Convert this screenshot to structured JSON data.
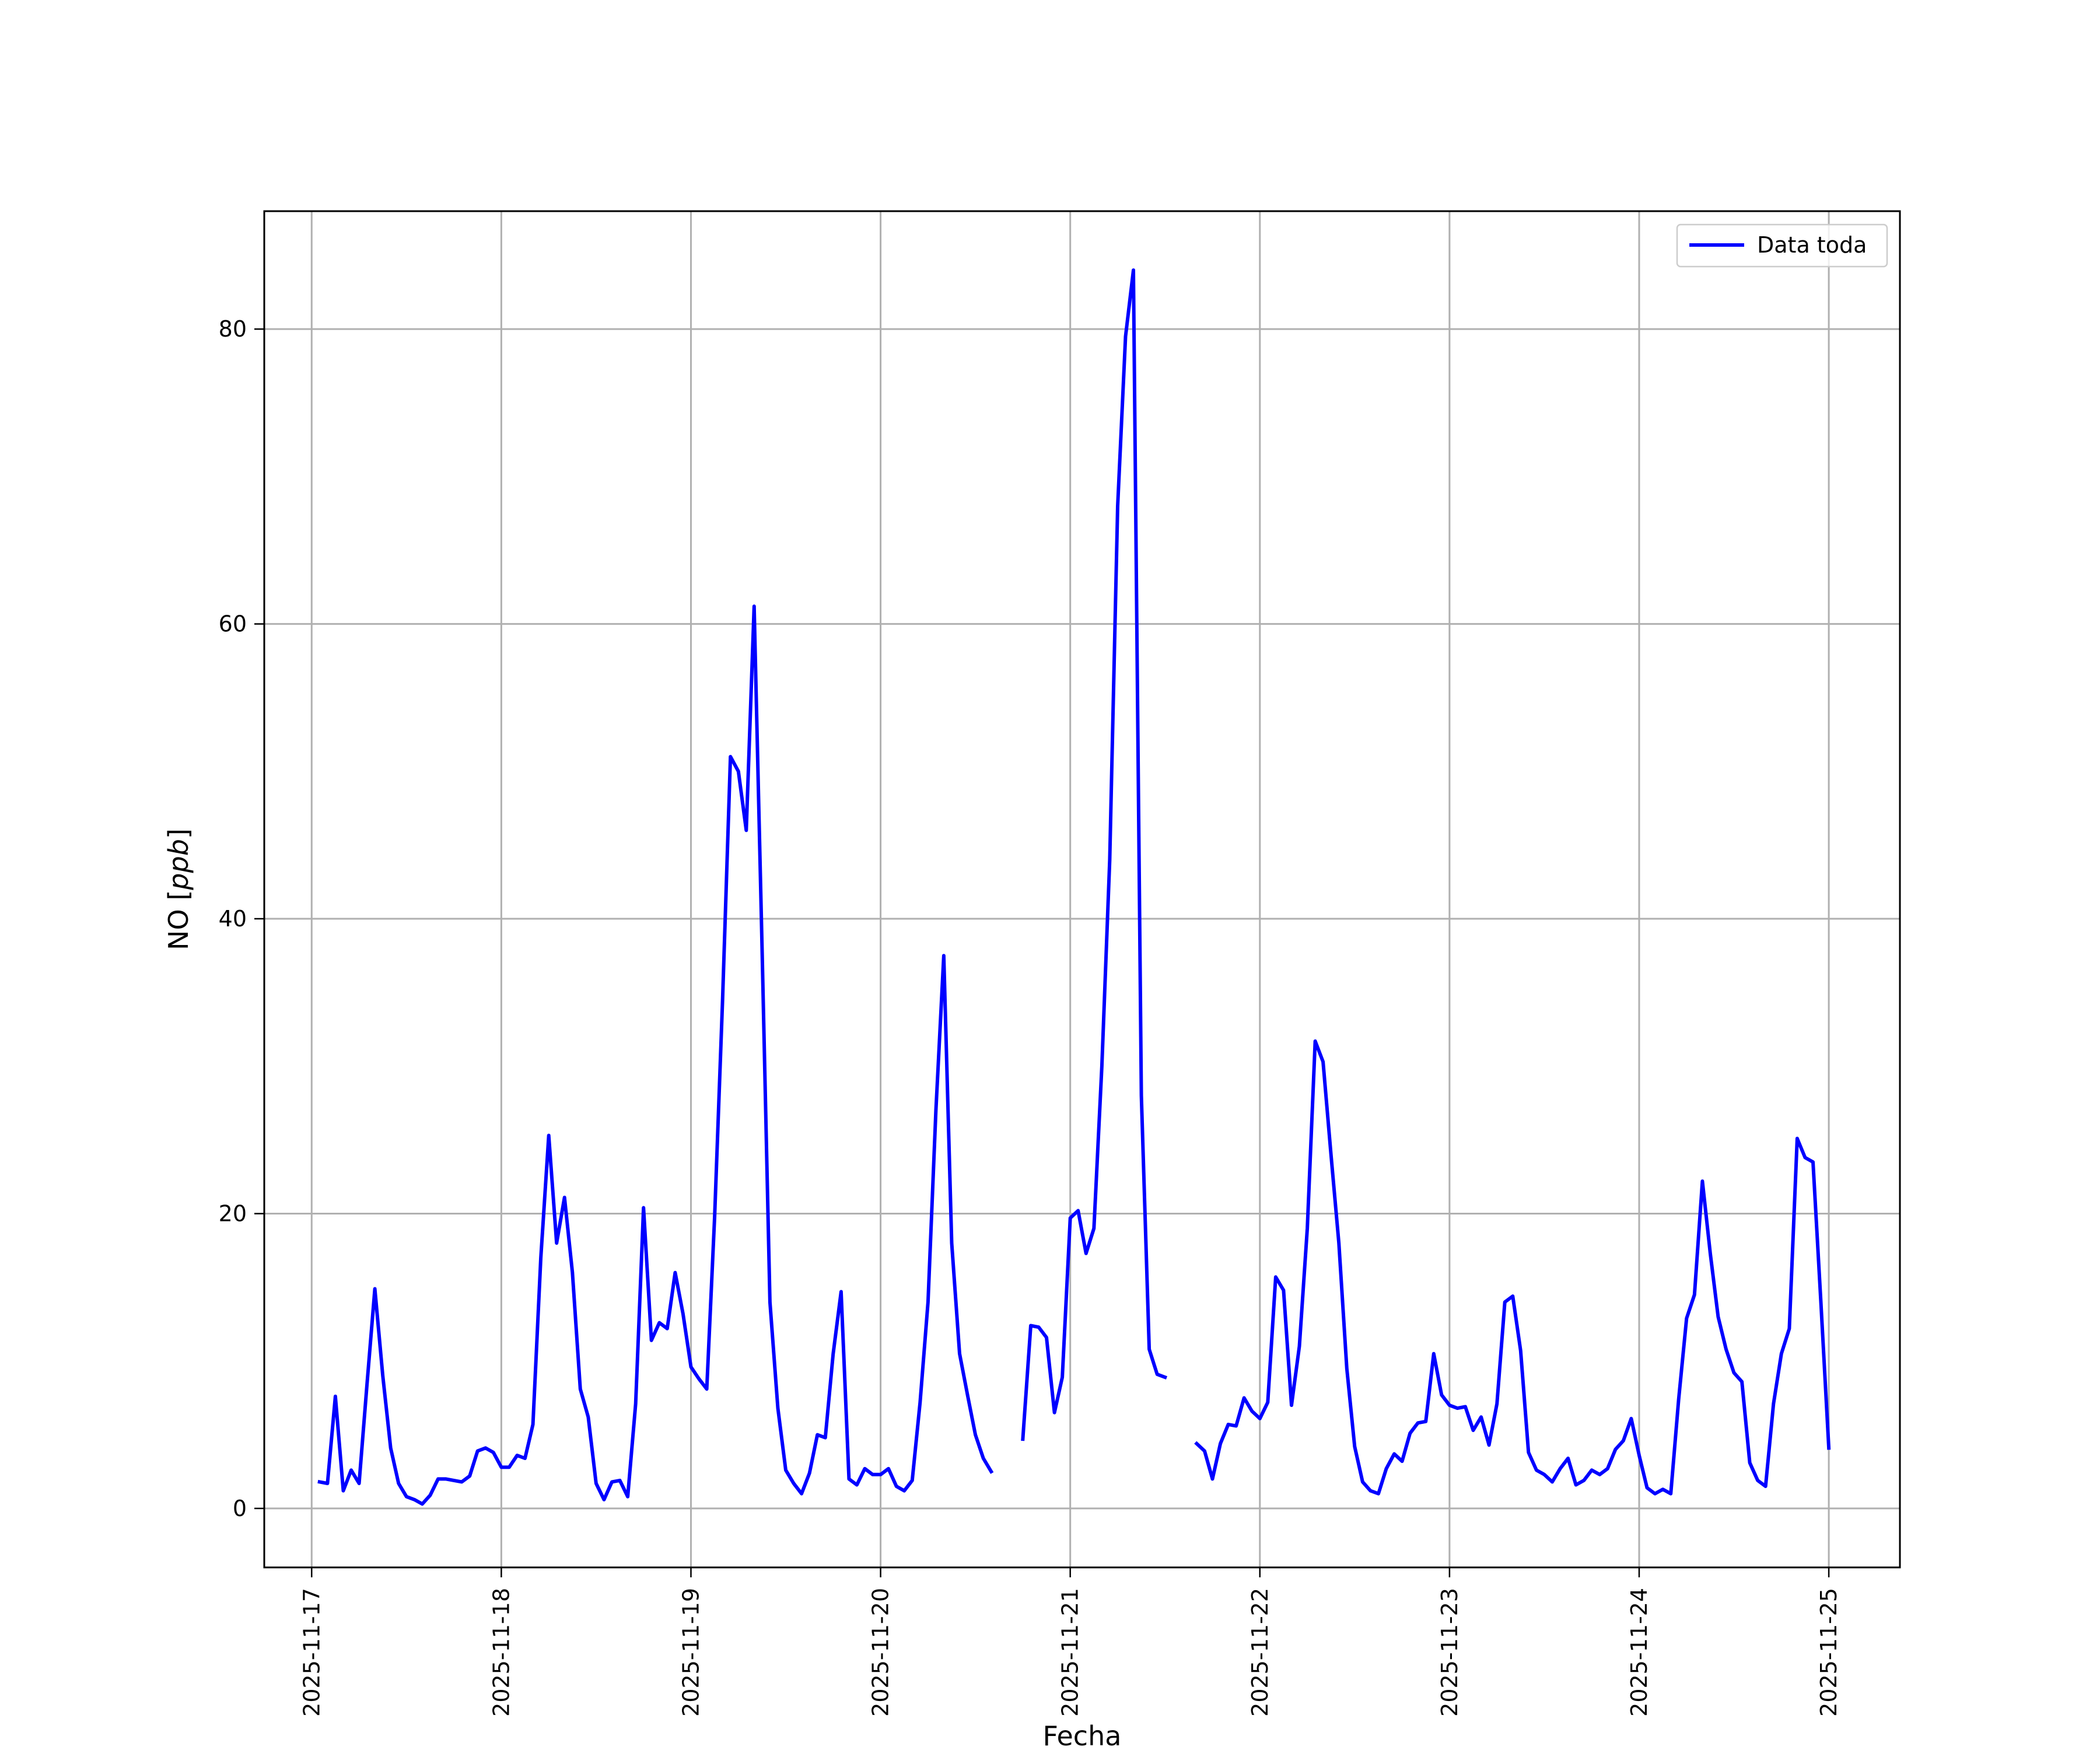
{
  "chart_data": {
    "type": "line",
    "xlabel": "Fecha",
    "ylabel_main": "NO [",
    "ylabel_unit": "ppb",
    "ylabel_close": "]",
    "x_axis": "date",
    "xlim": [
      "2025-11-16T18:00",
      "2025-11-25T09:00"
    ],
    "ylim": [
      -4,
      88
    ],
    "grid": true,
    "legend_position": "top-right",
    "x_ticks": [
      "2025-11-17",
      "2025-11-18",
      "2025-11-19",
      "2025-11-20",
      "2025-11-21",
      "2025-11-22",
      "2025-11-23",
      "2025-11-24",
      "2025-11-25"
    ],
    "y_ticks": [
      0,
      20,
      40,
      60,
      80
    ],
    "series": [
      {
        "name": "Data toda",
        "color": "#0000ff",
        "points": [
          [
            "2025-11-17T01:00",
            1.8
          ],
          [
            "2025-11-17T02:00",
            1.7
          ],
          [
            "2025-11-17T03:00",
            7.6
          ],
          [
            "2025-11-17T04:00",
            1.2
          ],
          [
            "2025-11-17T05:00",
            2.6
          ],
          [
            "2025-11-17T06:00",
            1.7
          ],
          [
            "2025-11-17T07:00",
            8.4
          ],
          [
            "2025-11-17T08:00",
            14.9
          ],
          [
            "2025-11-17T09:00",
            9.0
          ],
          [
            "2025-11-17T10:00",
            4.1
          ],
          [
            "2025-11-17T11:00",
            1.7
          ],
          [
            "2025-11-17T12:00",
            0.8
          ],
          [
            "2025-11-17T13:00",
            0.6
          ],
          [
            "2025-11-17T14:00",
            0.3
          ],
          [
            "2025-11-17T15:00",
            0.9
          ],
          [
            "2025-11-17T16:00",
            2.0
          ],
          [
            "2025-11-17T17:00",
            2.0
          ],
          [
            "2025-11-17T18:00",
            1.9
          ],
          [
            "2025-11-17T19:00",
            1.8
          ],
          [
            "2025-11-17T20:00",
            2.2
          ],
          [
            "2025-11-17T21:00",
            3.9
          ],
          [
            "2025-11-17T22:00",
            4.1
          ],
          [
            "2025-11-17T23:00",
            3.8
          ],
          [
            "2025-11-18T00:00",
            2.8
          ],
          [
            "2025-11-18T01:00",
            2.8
          ],
          [
            "2025-11-18T02:00",
            3.6
          ],
          [
            "2025-11-18T03:00",
            3.4
          ],
          [
            "2025-11-18T04:00",
            5.7
          ],
          [
            "2025-11-18T05:00",
            17.0
          ],
          [
            "2025-11-18T06:00",
            25.3
          ],
          [
            "2025-11-18T07:00",
            18.0
          ],
          [
            "2025-11-18T08:00",
            21.1
          ],
          [
            "2025-11-18T09:00",
            16.0
          ],
          [
            "2025-11-18T10:00",
            8.1
          ],
          [
            "2025-11-18T11:00",
            6.2
          ],
          [
            "2025-11-18T12:00",
            1.7
          ],
          [
            "2025-11-18T13:00",
            0.6
          ],
          [
            "2025-11-18T14:00",
            1.8
          ],
          [
            "2025-11-18T15:00",
            1.9
          ],
          [
            "2025-11-18T16:00",
            0.8
          ],
          [
            "2025-11-18T17:00",
            7.1
          ],
          [
            "2025-11-18T18:00",
            20.4
          ],
          [
            "2025-11-18T19:00",
            11.4
          ],
          [
            "2025-11-18T20:00",
            12.6
          ],
          [
            "2025-11-18T21:00",
            12.2
          ],
          [
            "2025-11-18T22:00",
            16.0
          ],
          [
            "2025-11-18T23:00",
            13.2
          ],
          [
            "2025-11-19T00:00",
            9.6
          ],
          [
            "2025-11-19T01:00",
            8.8
          ],
          [
            "2025-11-19T02:00",
            8.1
          ],
          [
            "2025-11-19T03:00",
            19.8
          ],
          [
            "2025-11-19T04:00",
            34.5
          ],
          [
            "2025-11-19T05:00",
            51.0
          ],
          [
            "2025-11-19T06:00",
            50.0
          ],
          [
            "2025-11-19T07:00",
            46.0
          ],
          [
            "2025-11-19T08:00",
            61.2
          ],
          [
            "2025-11-19T09:00",
            38.0
          ],
          [
            "2025-11-19T10:00",
            14.0
          ],
          [
            "2025-11-19T11:00",
            6.8
          ],
          [
            "2025-11-19T12:00",
            2.6
          ],
          [
            "2025-11-19T13:00",
            1.7
          ],
          [
            "2025-11-19T14:00",
            1.0
          ],
          [
            "2025-11-19T15:00",
            2.4
          ],
          [
            "2025-11-19T16:00",
            5.0
          ],
          [
            "2025-11-19T17:00",
            4.8
          ],
          [
            "2025-11-19T18:00",
            10.5
          ],
          [
            "2025-11-19T19:00",
            14.7
          ],
          [
            "2025-11-19T20:00",
            2.0
          ],
          [
            "2025-11-19T21:00",
            1.6
          ],
          [
            "2025-11-19T22:00",
            2.7
          ],
          [
            "2025-11-19T23:00",
            2.3
          ],
          [
            "2025-11-20T00:00",
            2.3
          ],
          [
            "2025-11-20T01:00",
            2.7
          ],
          [
            "2025-11-20T02:00",
            1.5
          ],
          [
            "2025-11-20T03:00",
            1.2
          ],
          [
            "2025-11-20T04:00",
            1.9
          ],
          [
            "2025-11-20T05:00",
            7.2
          ],
          [
            "2025-11-20T06:00",
            14.0
          ],
          [
            "2025-11-20T07:00",
            27.0
          ],
          [
            "2025-11-20T08:00",
            37.5
          ],
          [
            "2025-11-20T09:00",
            18.0
          ],
          [
            "2025-11-20T10:00",
            10.5
          ],
          [
            "2025-11-20T11:00",
            7.7
          ],
          [
            "2025-11-20T12:00",
            5.0
          ],
          [
            "2025-11-20T13:00",
            3.4
          ],
          [
            "2025-11-20T14:00",
            2.5
          ],
          null,
          [
            "2025-11-20T18:00",
            4.7
          ],
          [
            "2025-11-20T19:00",
            12.4
          ],
          [
            "2025-11-20T20:00",
            12.3
          ],
          [
            "2025-11-20T21:00",
            11.6
          ],
          [
            "2025-11-20T22:00",
            6.5
          ],
          [
            "2025-11-20T23:00",
            8.9
          ],
          [
            "2025-11-21T00:00",
            19.7
          ],
          [
            "2025-11-21T01:00",
            20.2
          ],
          [
            "2025-11-21T02:00",
            17.3
          ],
          [
            "2025-11-21T03:00",
            19.0
          ],
          [
            "2025-11-21T04:00",
            30.0
          ],
          [
            "2025-11-21T05:00",
            44.0
          ],
          [
            "2025-11-21T06:00",
            68.0
          ],
          [
            "2025-11-21T07:00",
            79.5
          ],
          [
            "2025-11-21T08:00",
            84.0
          ],
          [
            "2025-11-21T09:00",
            28.0
          ],
          [
            "2025-11-21T10:00",
            10.8
          ],
          [
            "2025-11-21T11:00",
            9.1
          ],
          [
            "2025-11-21T12:00",
            8.9
          ],
          null,
          [
            "2025-11-21T16:00",
            4.4
          ],
          [
            "2025-11-21T17:00",
            3.9
          ],
          [
            "2025-11-21T18:00",
            2.0
          ],
          [
            "2025-11-21T19:00",
            4.4
          ],
          [
            "2025-11-21T20:00",
            5.7
          ],
          [
            "2025-11-21T21:00",
            5.6
          ],
          [
            "2025-11-21T22:00",
            7.5
          ],
          [
            "2025-11-21T23:00",
            6.6
          ],
          [
            "2025-11-22T00:00",
            6.1
          ],
          [
            "2025-11-22T01:00",
            7.2
          ],
          [
            "2025-11-22T02:00",
            15.7
          ],
          [
            "2025-11-22T03:00",
            14.8
          ],
          [
            "2025-11-22T04:00",
            7.0
          ],
          [
            "2025-11-22T05:00",
            11.0
          ],
          [
            "2025-11-22T06:00",
            19.0
          ],
          [
            "2025-11-22T07:00",
            31.7
          ],
          [
            "2025-11-22T08:00",
            30.3
          ],
          [
            "2025-11-22T09:00",
            24.0
          ],
          [
            "2025-11-22T10:00",
            18.0
          ],
          [
            "2025-11-22T11:00",
            9.5
          ],
          [
            "2025-11-22T12:00",
            4.2
          ],
          [
            "2025-11-22T13:00",
            1.8
          ],
          [
            "2025-11-22T14:00",
            1.2
          ],
          [
            "2025-11-22T15:00",
            1.0
          ],
          [
            "2025-11-22T16:00",
            2.7
          ],
          [
            "2025-11-22T17:00",
            3.7
          ],
          [
            "2025-11-22T18:00",
            3.2
          ],
          [
            "2025-11-22T19:00",
            5.1
          ],
          [
            "2025-11-22T20:00",
            5.8
          ],
          [
            "2025-11-22T21:00",
            5.9
          ],
          [
            "2025-11-22T22:00",
            10.5
          ],
          [
            "2025-11-22T23:00",
            7.7
          ],
          [
            "2025-11-23T00:00",
            7.0
          ],
          [
            "2025-11-23T01:00",
            6.8
          ],
          [
            "2025-11-23T02:00",
            6.9
          ],
          [
            "2025-11-23T03:00",
            5.3
          ],
          [
            "2025-11-23T04:00",
            6.2
          ],
          [
            "2025-11-23T05:00",
            4.3
          ],
          [
            "2025-11-23T06:00",
            7.1
          ],
          [
            "2025-11-23T07:00",
            14.0
          ],
          [
            "2025-11-23T08:00",
            14.4
          ],
          [
            "2025-11-23T09:00",
            10.7
          ],
          [
            "2025-11-23T10:00",
            3.8
          ],
          [
            "2025-11-23T11:00",
            2.6
          ],
          [
            "2025-11-23T12:00",
            2.3
          ],
          [
            "2025-11-23T13:00",
            1.8
          ],
          [
            "2025-11-23T14:00",
            2.7
          ],
          [
            "2025-11-23T15:00",
            3.4
          ],
          [
            "2025-11-23T16:00",
            1.6
          ],
          [
            "2025-11-23T17:00",
            1.9
          ],
          [
            "2025-11-23T18:00",
            2.6
          ],
          [
            "2025-11-23T19:00",
            2.3
          ],
          [
            "2025-11-23T20:00",
            2.7
          ],
          [
            "2025-11-23T21:00",
            4.0
          ],
          [
            "2025-11-23T22:00",
            4.6
          ],
          [
            "2025-11-23T23:00",
            6.1
          ],
          [
            "2025-11-24T00:00",
            3.6
          ],
          [
            "2025-11-24T01:00",
            1.4
          ],
          [
            "2025-11-24T02:00",
            1.0
          ],
          [
            "2025-11-24T03:00",
            1.3
          ],
          [
            "2025-11-24T04:00",
            1.0
          ],
          [
            "2025-11-24T05:00",
            7.4
          ],
          [
            "2025-11-24T06:00",
            12.9
          ],
          [
            "2025-11-24T07:00",
            14.5
          ],
          [
            "2025-11-24T08:00",
            22.2
          ],
          [
            "2025-11-24T09:00",
            17.3
          ],
          [
            "2025-11-24T10:00",
            13.0
          ],
          [
            "2025-11-24T11:00",
            10.8
          ],
          [
            "2025-11-24T12:00",
            9.2
          ],
          [
            "2025-11-24T13:00",
            8.6
          ],
          [
            "2025-11-24T14:00",
            3.1
          ],
          [
            "2025-11-24T15:00",
            1.9
          ],
          [
            "2025-11-24T16:00",
            1.5
          ],
          [
            "2025-11-24T17:00",
            7.1
          ],
          [
            "2025-11-24T18:00",
            10.5
          ],
          [
            "2025-11-24T19:00",
            12.2
          ],
          [
            "2025-11-24T20:00",
            25.1
          ],
          [
            "2025-11-24T21:00",
            23.8
          ],
          [
            "2025-11-24T22:00",
            23.5
          ],
          [
            "2025-11-24T23:00",
            14.0
          ],
          [
            "2025-11-25T00:00",
            4.1
          ]
        ]
      }
    ]
  }
}
